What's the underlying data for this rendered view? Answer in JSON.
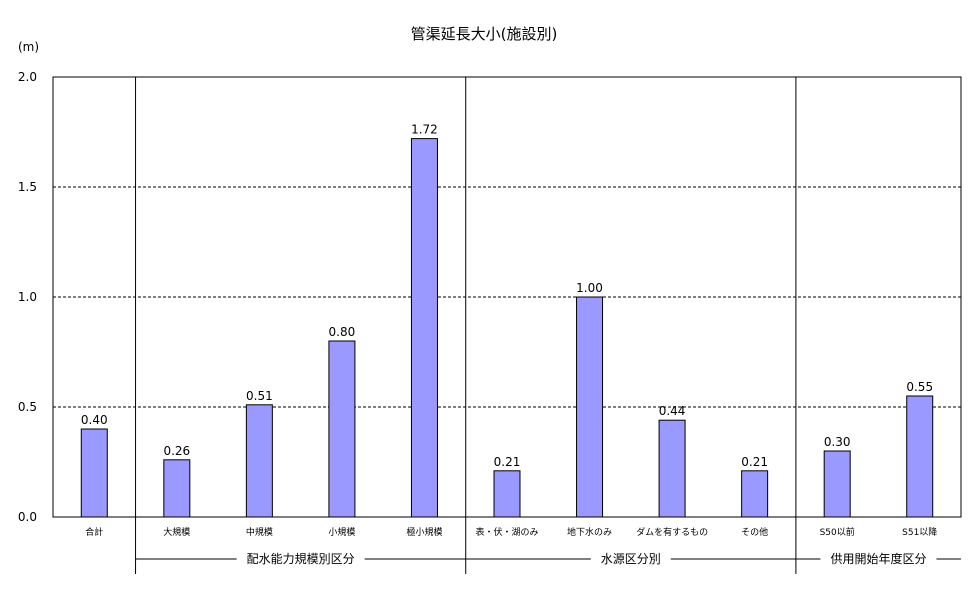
{
  "chart_data": {
    "type": "bar",
    "title": "管渠延長大小(施設別)",
    "ylabel": "(m)",
    "ylim": [
      0,
      2.0
    ],
    "yticks": [
      "0.0",
      "0.5",
      "1.0",
      "1.5",
      "2.0"
    ],
    "categories": [
      "合計",
      "大規模",
      "中規模",
      "小規模",
      "極小規模",
      "表・伏・湖のみ",
      "地下水のみ",
      "ダムを有するもの",
      "その他",
      "S50以前",
      "S51以降"
    ],
    "values": [
      0.4,
      0.26,
      0.51,
      0.8,
      1.72,
      0.21,
      1.0,
      0.44,
      0.21,
      0.3,
      0.55
    ],
    "value_labels": [
      "0.40",
      "0.26",
      "0.51",
      "0.80",
      "1.72",
      "0.21",
      "1.00",
      "0.44",
      "0.21",
      "0.30",
      "0.55"
    ],
    "groups": [
      {
        "label": "配水能力規模別区分",
        "start": 1,
        "end": 4
      },
      {
        "label": "水源区分別",
        "start": 5,
        "end": 8
      },
      {
        "label": "供用開始年度区分",
        "start": 9,
        "end": 10
      }
    ],
    "grid": "dashed horizontal",
    "legend": "none",
    "colors": {
      "bar_fill": "#9999ff",
      "bar_stroke": "#000000"
    }
  }
}
